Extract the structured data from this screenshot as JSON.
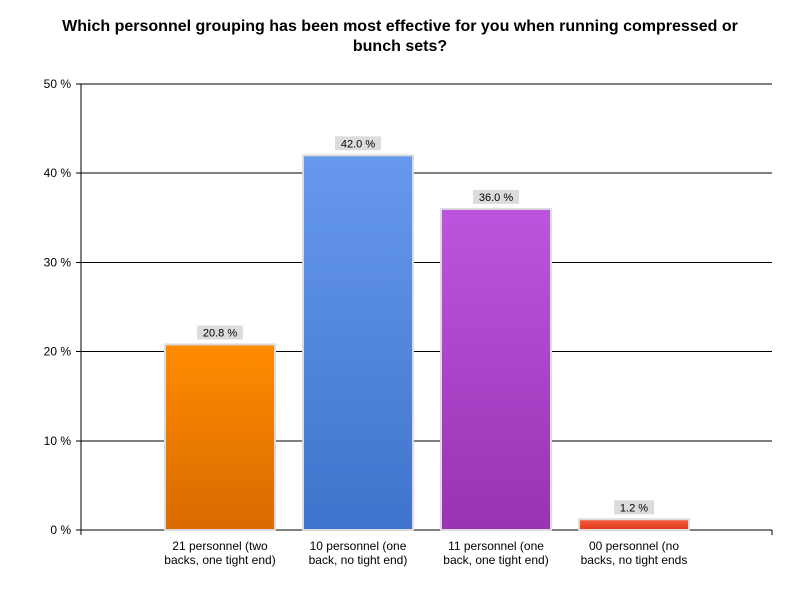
{
  "chart_data": {
    "type": "bar",
    "title": "Which personnel grouping has been most effective for you when running compressed or bunch sets?",
    "xlabel": "",
    "ylabel": "",
    "ylim": [
      0,
      50
    ],
    "yticks": [
      0,
      10,
      20,
      30,
      40,
      50
    ],
    "ytick_labels": [
      "0 %",
      "10 %",
      "20 %",
      "30 %",
      "40 %",
      "50 %"
    ],
    "grid": true,
    "legend": "none",
    "categories": [
      "21 personnel (two backs, one tight end)",
      "10 personnel (one back, no tight end)",
      "11 personnel (one back, one tight end)",
      "00 personnel (no backs, no tight ends"
    ],
    "category_lines": [
      [
        "21 personnel (two",
        "backs, one tight end)"
      ],
      [
        "10 personnel (one",
        "back, no tight end)"
      ],
      [
        "11 personnel (one",
        "back, one tight end)"
      ],
      [
        "00 personnel (no",
        "backs, no tight ends"
      ]
    ],
    "values": [
      20.8,
      42.0,
      36.0,
      1.2
    ],
    "data_labels": [
      "20.8 %",
      "42.0 %",
      "36.0 %",
      "1.2 %"
    ],
    "colors": [
      {
        "top": "#ff8c00",
        "bottom": "#d86a00"
      },
      {
        "top": "#6699ee",
        "bottom": "#3f74cc"
      },
      {
        "top": "#bb55dd",
        "bottom": "#9933b3"
      },
      {
        "top": "#f55a3a",
        "bottom": "#e03a1e"
      }
    ]
  }
}
